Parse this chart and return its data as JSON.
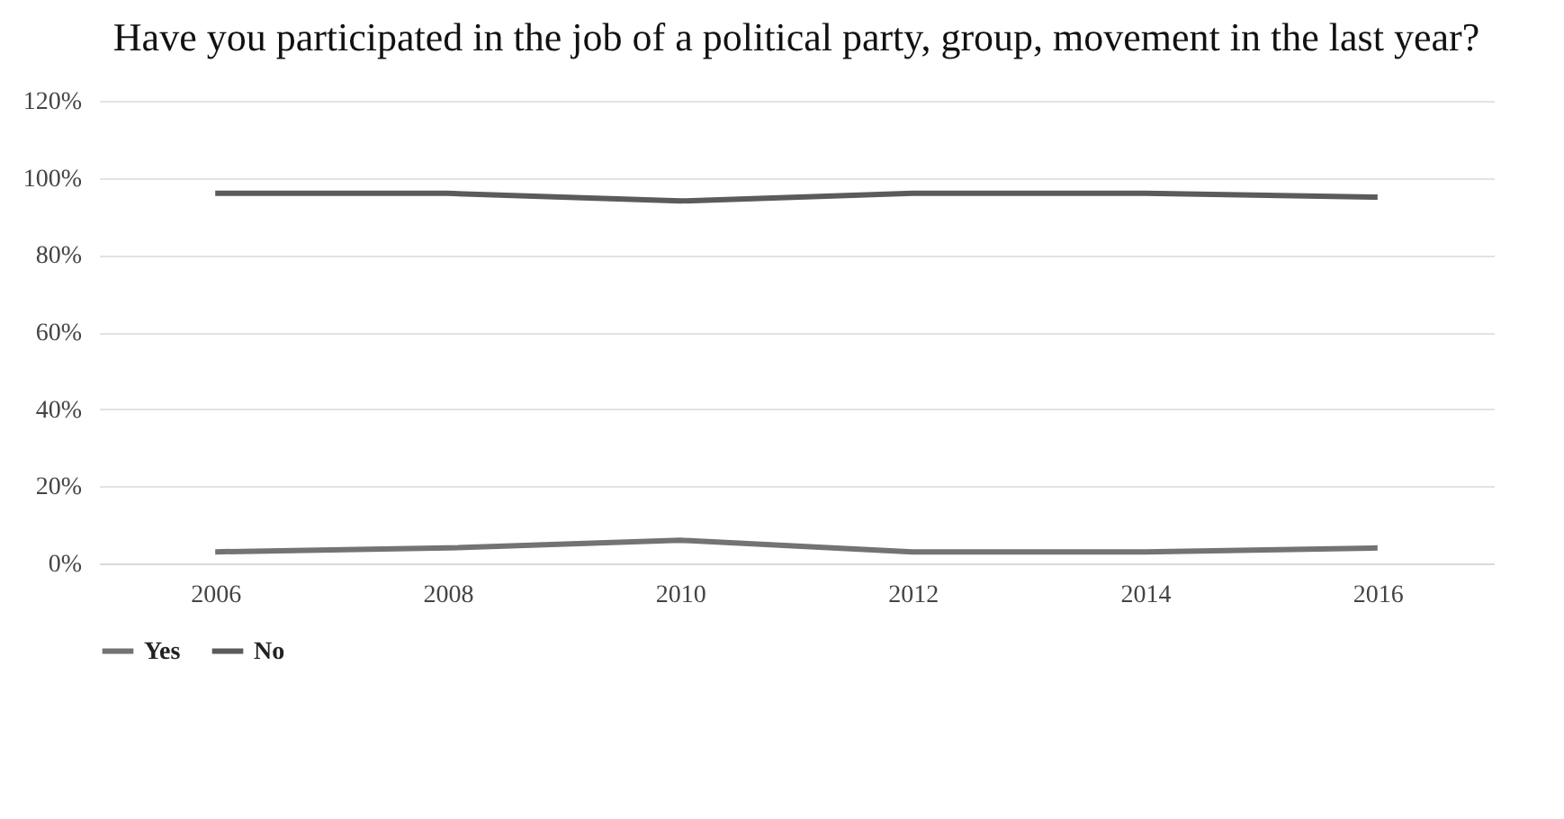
{
  "chart_data": {
    "type": "line",
    "title": "Have you participated in the job of a political party, group, movement in the last year?",
    "categories": [
      "2006",
      "2008",
      "2010",
      "2012",
      "2014",
      "2016"
    ],
    "series": [
      {
        "name": "Yes",
        "color": "#737373",
        "values": [
          3,
          4,
          6,
          3,
          3,
          4
        ]
      },
      {
        "name": "No",
        "color": "#5b5b5b",
        "values": [
          96,
          96,
          94,
          96,
          96,
          95
        ]
      }
    ],
    "ylim": [
      0,
      120
    ],
    "yticks": [
      {
        "value": 0,
        "label": "0%"
      },
      {
        "value": 20,
        "label": "20%"
      },
      {
        "value": 40,
        "label": "40%"
      },
      {
        "value": 60,
        "label": "60%"
      },
      {
        "value": 80,
        "label": "80%"
      },
      {
        "value": 100,
        "label": "100%"
      },
      {
        "value": 120,
        "label": "120%"
      }
    ],
    "grid": "y",
    "legend": "bottom",
    "marker": "none",
    "line_style": "solid"
  }
}
